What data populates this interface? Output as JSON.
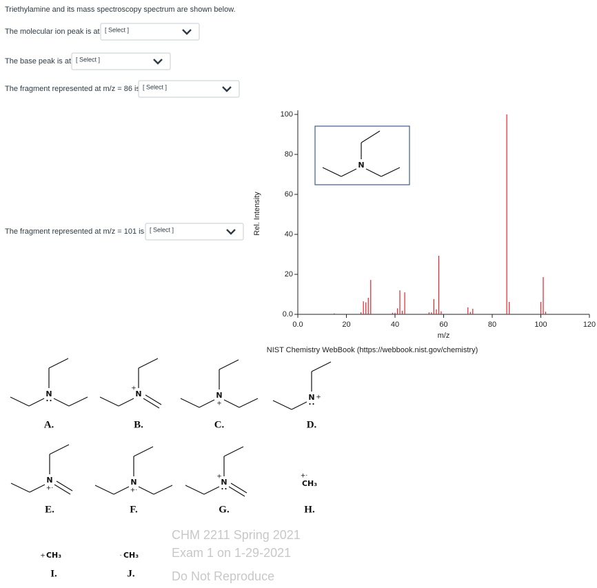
{
  "intro": "Triethylamine and its mass spectroscopy spectrum are shown below.",
  "questions": [
    {
      "prompt": "The molecular ion peak is at",
      "select": "[ Select ]"
    },
    {
      "prompt": "The base peak is at",
      "select": "[ Select ]"
    },
    {
      "prompt": "The fragment represented at m/z = 86 is",
      "select": "[ Select ]"
    },
    {
      "prompt": "The fragment represented at m/z = 101 is",
      "select": "[ Select ]"
    }
  ],
  "chart_data": {
    "type": "bar",
    "x": [
      15,
      26,
      27,
      28,
      29,
      30,
      39,
      40,
      41,
      42,
      43,
      44,
      54,
      55,
      56,
      57,
      58,
      59,
      70,
      71,
      72,
      86,
      87,
      100,
      101,
      102
    ],
    "values": [
      0.5,
      1,
      6.5,
      6,
      8.3,
      17.2,
      0.8,
      0.8,
      3,
      12,
      1.8,
      11,
      1,
      1,
      7.6,
      2.5,
      29.3,
      1.5,
      3.5,
      1.2,
      2.8,
      100,
      6.2,
      6.2,
      18.6,
      1.3
    ],
    "color": "#e8202a",
    "xlim": [
      0,
      120
    ],
    "xticks": [
      {
        "value": 0,
        "label": "0.0"
      },
      20,
      40,
      60,
      80,
      100,
      120
    ],
    "ylim": [
      0,
      100
    ],
    "yticks": [
      {
        "value": 0,
        "label": "0.0"
      },
      20,
      40,
      60,
      80,
      100
    ],
    "xlabel": "m/z",
    "ylabel": "Rel. Intensity",
    "structure_atom": "N",
    "source": "NIST Chemistry WebBook (https://webbook.nist.gov/chemistry)"
  },
  "structures": [
    {
      "label": "A.",
      "atom": "N"
    },
    {
      "label": "B.",
      "atom": "N",
      "charge": "+"
    },
    {
      "label": "C.",
      "atom": "N",
      "charge": "+"
    },
    {
      "label": "D.",
      "atom": "N",
      "charge": "+"
    },
    {
      "label": "E.",
      "atom": "N",
      "charge": "+·"
    },
    {
      "label": "F.",
      "atom": "N",
      "charge": "+·"
    },
    {
      "label": "G.",
      "atom": "N",
      "charge": "+"
    },
    {
      "label": "H.",
      "atom": "CH₃",
      "charge": "+·"
    },
    {
      "label": "I.",
      "atom": "CH₃",
      "charge": "+"
    },
    {
      "label": "J.",
      "atom": "CH₃",
      "charge": "·"
    }
  ],
  "watermark": [
    "CHM 2211 Spring 2021",
    "Exam 1 on 1-29-2021",
    "Do Not Reproduce"
  ]
}
